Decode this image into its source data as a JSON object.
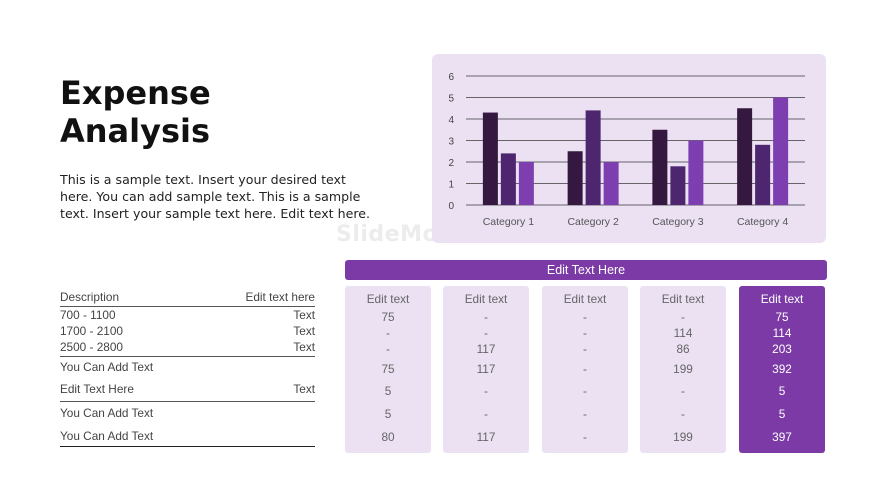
{
  "slide": {
    "title_line1": "Expense",
    "title_line2": "Analysis",
    "body": "This is a sample text. Insert your desired text here. You can add sample text. This is a sample text. Insert your sample text here. Edit text here.",
    "watermark": "SlideModel.com",
    "banner": "Edit Text Here"
  },
  "colors": {
    "accent": "#7b3aa6",
    "panel": "#ebe1f3",
    "series": [
      "#34183f",
      "#4e2670",
      "#7d3fb0"
    ]
  },
  "chart_data": {
    "type": "bar",
    "categories": [
      "Category 1",
      "Category 2",
      "Category 3",
      "Category 4"
    ],
    "series": [
      {
        "values": [
          4.3,
          2.5,
          3.5,
          4.5
        ]
      },
      {
        "values": [
          2.4,
          4.4,
          1.8,
          2.8
        ]
      },
      {
        "values": [
          2.0,
          2.0,
          3.0,
          5.0
        ]
      }
    ],
    "ylim": [
      0,
      6
    ],
    "yticks": [
      "0",
      "1",
      "2",
      "3",
      "4",
      "5",
      "6"
    ],
    "grid": true
  },
  "desc_table": {
    "header": {
      "left": "Description",
      "right": "Edit text here"
    },
    "rows": [
      {
        "left": "700 - 1100",
        "right": "Text"
      },
      {
        "left": "1700 - 2100",
        "right": "Text"
      },
      {
        "left": "2500 - 2800",
        "right": "Text"
      },
      {
        "left": "You Can Add Text",
        "right": ""
      },
      {
        "left": "Edit Text Here",
        "right": "Text"
      },
      {
        "left": "You Can Add Text",
        "right": ""
      },
      {
        "left": "You Can Add Text",
        "right": ""
      }
    ]
  },
  "columns": [
    {
      "header": "Edit text",
      "values": [
        "75",
        "-",
        "-",
        "75",
        "5",
        "5",
        "80"
      ]
    },
    {
      "header": "Edit text",
      "values": [
        "-",
        "-",
        "117",
        "117",
        "-",
        "-",
        "117"
      ]
    },
    {
      "header": "Edit text",
      "values": [
        "-",
        "-",
        "-",
        "-",
        "-",
        "-",
        "-"
      ]
    },
    {
      "header": "Edit text",
      "values": [
        "-",
        "114",
        "86",
        "199",
        "-",
        "-",
        "199"
      ]
    },
    {
      "header": "Edit text",
      "values": [
        "75",
        "114",
        "203",
        "392",
        "5",
        "5",
        "397"
      ]
    }
  ]
}
